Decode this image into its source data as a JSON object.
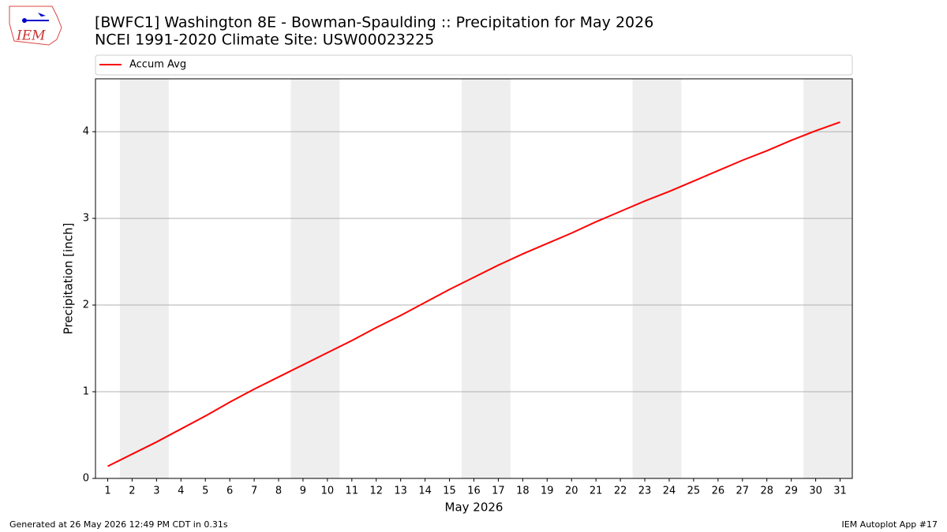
{
  "logo_text": "IEM",
  "footer_left": "Generated at 26 May 2026 12:49 PM CDT in 0.31s",
  "footer_right": "IEM Autoplot App #17",
  "chart_data": {
    "type": "line",
    "title": "[BWFC1] Washington 8E - Bowman-Spaulding :: Precipitation for May 2026",
    "subtitle": "NCEI 1991-2020 Climate Site: USW00023225",
    "x_label": "May 2026",
    "y_label": "Precipitation [inch]",
    "x": [
      1,
      2,
      3,
      4,
      5,
      6,
      7,
      8,
      9,
      10,
      11,
      12,
      13,
      14,
      15,
      16,
      17,
      18,
      19,
      20,
      21,
      22,
      23,
      24,
      25,
      26,
      27,
      28,
      29,
      30,
      31
    ],
    "series": [
      {
        "name": "Accum Avg",
        "color": "#ff0000",
        "values": [
          0.14,
          0.28,
          0.42,
          0.57,
          0.72,
          0.88,
          1.03,
          1.17,
          1.31,
          1.45,
          1.59,
          1.74,
          1.88,
          2.03,
          2.18,
          2.32,
          2.46,
          2.59,
          2.71,
          2.83,
          2.96,
          3.08,
          3.2,
          3.31,
          3.43,
          3.55,
          3.67,
          3.78,
          3.9,
          4.01,
          4.11
        ]
      }
    ],
    "xlim": [
      0.5,
      31.5
    ],
    "ylim": [
      0,
      4.61
    ],
    "xticks": [
      1,
      2,
      3,
      4,
      5,
      6,
      7,
      8,
      9,
      10,
      11,
      12,
      13,
      14,
      15,
      16,
      17,
      18,
      19,
      20,
      21,
      22,
      23,
      24,
      25,
      26,
      27,
      28,
      29,
      30,
      31
    ],
    "yticks": [
      0,
      1,
      2,
      3,
      4
    ],
    "shaded_ranges": [
      [
        1.5,
        3.5
      ],
      [
        8.5,
        10.5
      ],
      [
        15.5,
        17.5
      ],
      [
        22.5,
        24.5
      ],
      [
        29.5,
        31.5
      ]
    ],
    "shade_color": "#eeeeee",
    "grid": true,
    "legend": "top"
  }
}
